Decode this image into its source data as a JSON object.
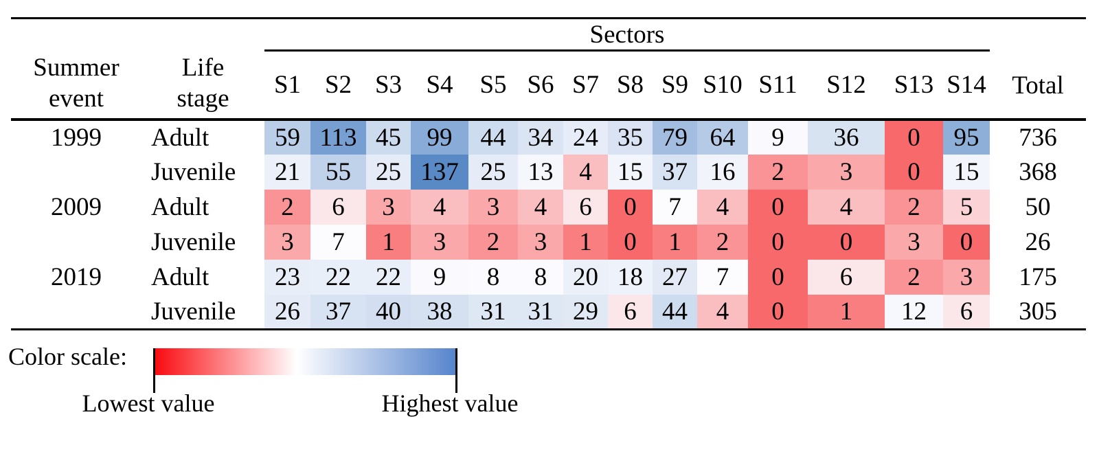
{
  "chart_data": {
    "type": "heatmap",
    "header": {
      "col1": {
        "line1": "Summer",
        "line2": "event"
      },
      "col2": {
        "line1": "Life",
        "line2": "stage"
      },
      "group": "Sectors",
      "total": "Total"
    },
    "columns": [
      "S1",
      "S2",
      "S3",
      "S4",
      "S5",
      "S6",
      "S7",
      "S8",
      "S9",
      "S10",
      "S11",
      "S12",
      "S13",
      "S14"
    ],
    "rows": [
      {
        "event": "1999",
        "life_stage": "Adult",
        "values": [
          59,
          113,
          45,
          99,
          44,
          34,
          24,
          35,
          79,
          64,
          9,
          36,
          0,
          95
        ],
        "total": 736
      },
      {
        "event": "",
        "life_stage": "Juvenile",
        "values": [
          21,
          55,
          25,
          137,
          25,
          13,
          4,
          15,
          37,
          16,
          2,
          3,
          0,
          15
        ],
        "total": 368
      },
      {
        "event": "2009",
        "life_stage": "Adult",
        "values": [
          2,
          6,
          3,
          4,
          3,
          4,
          6,
          0,
          7,
          4,
          0,
          4,
          2,
          5
        ],
        "total": 50
      },
      {
        "event": "",
        "life_stage": "Juvenile",
        "values": [
          3,
          7,
          1,
          3,
          2,
          3,
          1,
          0,
          1,
          2,
          0,
          0,
          3,
          0
        ],
        "total": 26
      },
      {
        "event": "2019",
        "life_stage": "Adult",
        "values": [
          23,
          22,
          22,
          9,
          8,
          8,
          20,
          18,
          27,
          7,
          0,
          6,
          2,
          3
        ],
        "total": 175
      },
      {
        "event": "",
        "life_stage": "Juvenile",
        "values": [
          26,
          37,
          40,
          38,
          31,
          31,
          29,
          6,
          44,
          4,
          0,
          1,
          12,
          6
        ],
        "total": 305
      }
    ],
    "color_scale": {
      "min": 0,
      "mid": 7,
      "max": 137,
      "min_color": "#F8696B",
      "mid_color": "#FCFCFF",
      "max_color": "#5A8AC6",
      "rule": "3-color scale, midpoint at 50th percentile"
    }
  },
  "legend": {
    "label": "Color scale:",
    "low_label": "Lowest value",
    "high_label": "Highest value",
    "gradient_start": "#FA0A10",
    "gradient_mid": "#FFFFFF",
    "gradient_end": "#5583CC"
  }
}
